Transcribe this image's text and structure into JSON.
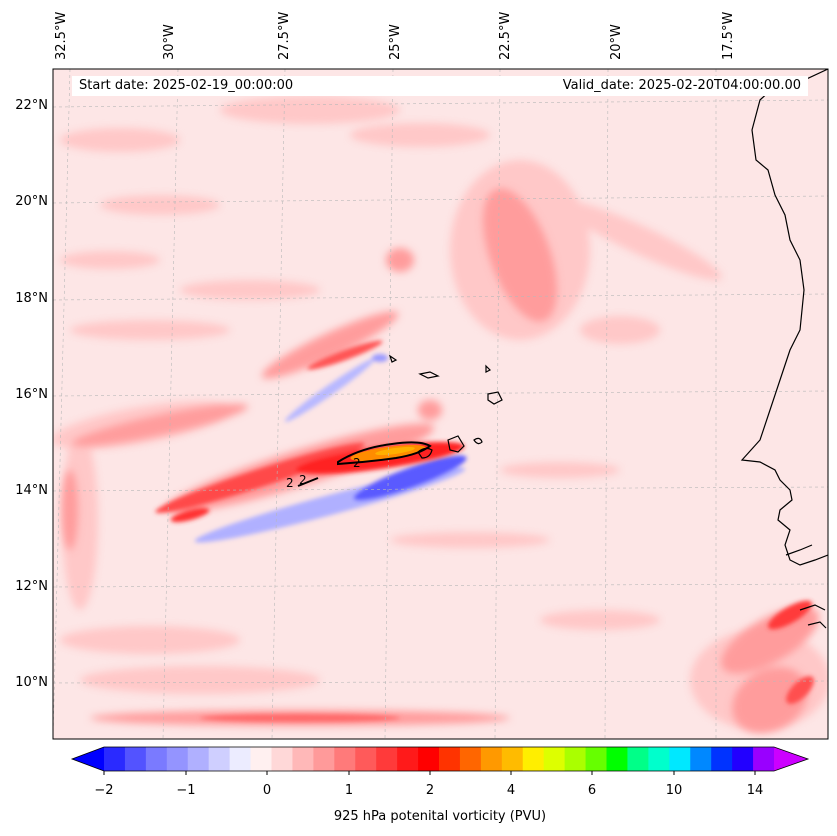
{
  "map": {
    "start_date": "Start date: 2025-02-19_00:00:00",
    "valid_date": "Valid_date: 2025-02-20T04:00:00.00",
    "lon_labels": [
      "32.5°W",
      "30°W",
      "27.5°W",
      "25°W",
      "22.5°W",
      "20°W",
      "17.5°W"
    ],
    "lat_labels": [
      "22°N",
      "20°N",
      "18°N",
      "16°N",
      "14°N",
      "12°N",
      "10°N"
    ],
    "contour_labels": [
      "2",
      "2",
      "2"
    ],
    "colors": {
      "background": "#fde6e6",
      "weak_positive": "#ffc4c4",
      "moderate_positive": "#ff8d8d",
      "strong_positive": "#ff2a2a",
      "negative": "#7a7aff",
      "high": "#ff8c00",
      "coastline": "#000000"
    }
  },
  "colorbar": {
    "ticks": [
      "−2",
      "−1",
      "0",
      "1",
      "2",
      "4",
      "6",
      "10",
      "14"
    ],
    "label": "925 hPa potenital vorticity (PVU)",
    "colors": [
      "#0000ff",
      "#2a2aff",
      "#5353ff",
      "#7a7aff",
      "#9494ff",
      "#b0b0ff",
      "#cfcfff",
      "#ececff",
      "#fff0f0",
      "#ffd8d8",
      "#ffb8b8",
      "#ff9a9a",
      "#ff7a7a",
      "#ff5a5a",
      "#ff3a3a",
      "#ff1a1a",
      "#ff0000",
      "#ff3300",
      "#ff6600",
      "#ff9900",
      "#ffbb00",
      "#ffee00",
      "#ddff00",
      "#aaff00",
      "#66ff00",
      "#00ff00",
      "#00ff88",
      "#00ffcc",
      "#00e8ff",
      "#0088ff",
      "#0033ff",
      "#2200ff",
      "#9900ff",
      "#cc00ff"
    ]
  }
}
